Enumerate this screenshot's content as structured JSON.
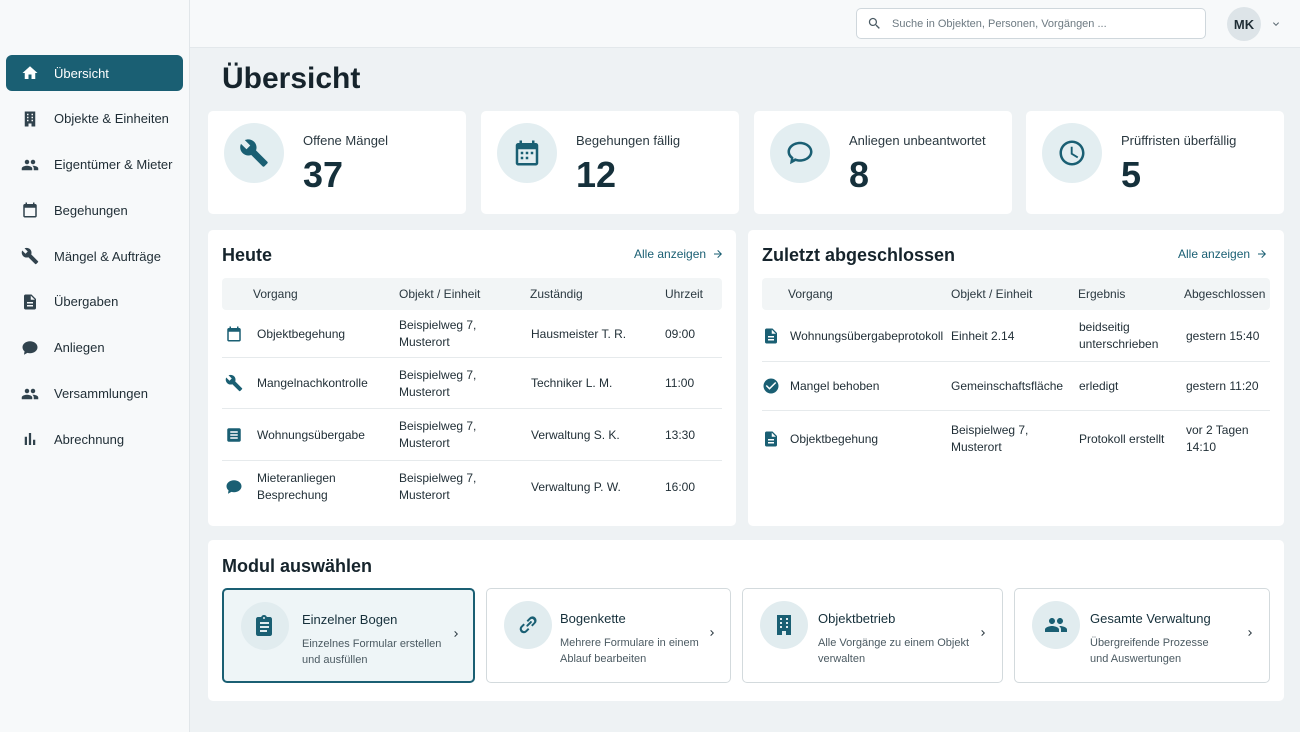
{
  "colors": {
    "accent": "#1a5f73",
    "background": "#eef2f4",
    "card": "#ffffff"
  },
  "sidebar": {
    "items": [
      {
        "label": "Übersicht",
        "icon": "home-icon"
      },
      {
        "label": "Objekte & Einheiten",
        "icon": "building-icon"
      },
      {
        "label": "Eigentümer & Mieter",
        "icon": "people-icon"
      },
      {
        "label": "Begehungen",
        "icon": "calendar-icon"
      },
      {
        "label": "Mängel & Aufträge",
        "icon": "wrench-icon"
      },
      {
        "label": "Übergaben",
        "icon": "document-icon"
      },
      {
        "label": "Anliegen",
        "icon": "chat-icon"
      },
      {
        "label": "Versammlungen",
        "icon": "group-icon"
      },
      {
        "label": "Abrechnung",
        "icon": "bar-chart-icon"
      }
    ]
  },
  "header": {
    "search_placeholder": "Suche in Objekten, Personen, Vorgängen ...",
    "avatar_initials": "MK"
  },
  "page_title": "Übersicht",
  "stats": [
    {
      "label": "Offene Mängel",
      "value": "37",
      "icon": "wrench-icon"
    },
    {
      "label": "Begehungen fällig",
      "value": "12",
      "icon": "calendar-icon"
    },
    {
      "label": "Anliegen unbeantwortet",
      "value": "8",
      "icon": "chat-icon"
    },
    {
      "label": "Prüffristen überfällig",
      "value": "5",
      "icon": "clock-icon"
    }
  ],
  "today": {
    "title": "Heute",
    "link": "Alle anzeigen",
    "columns": [
      "Vorgang",
      "Objekt / Einheit",
      "Zuständig",
      "Uhrzeit"
    ],
    "rows": [
      {
        "icon": "calendar-icon",
        "vorgang": "Objektbegehung",
        "objekt_1": "Beispielweg 7,",
        "objekt_2": "Musterort",
        "zustaendig": "Hausmeister T. R.",
        "uhrzeit": "09:00"
      },
      {
        "icon": "wrench-icon",
        "vorgang": "Mangelnachkontrolle",
        "objekt_1": "Beispielweg 7,",
        "objekt_2": "Musterort",
        "zustaendig": "Techniker L. M.",
        "uhrzeit": "11:00"
      },
      {
        "icon": "document-icon",
        "vorgang": "Wohnungsübergabe",
        "objekt_1": "Beispielweg 7,",
        "objekt_2": "Musterort",
        "zustaendig": "Verwaltung S. K.",
        "uhrzeit": "13:30"
      },
      {
        "icon": "chat-icon",
        "vorgang_1": "Mieteranliegen",
        "vorgang_2": "Besprechung",
        "objekt_1": "Beispielweg 7,",
        "objekt_2": "Musterort",
        "zustaendig": "Verwaltung P. W.",
        "uhrzeit": "16:00"
      }
    ]
  },
  "recent": {
    "title": "Zuletzt abgeschlossen",
    "link": "Alle anzeigen",
    "columns": [
      "Vorgang",
      "Objekt / Einheit",
      "Ergebnis",
      "Abgeschlossen"
    ],
    "rows": [
      {
        "icon": "document-icon",
        "vorgang": "Wohnungsübergabeprotokoll",
        "objekt": "Einheit 2.14",
        "ergebnis_1": "beidseitig",
        "ergebnis_2": "unterschrieben",
        "abgeschlossen": "gestern 15:40"
      },
      {
        "icon": "check-circle-icon",
        "vorgang": "Mangel behoben",
        "objekt": "Gemeinschaftsfläche",
        "ergebnis": "erledigt",
        "abgeschlossen": "gestern 11:20"
      },
      {
        "icon": "document-icon",
        "vorgang": "Objektbegehung",
        "objekt_1": "Beispielweg 7,",
        "objekt_2": "Musterort",
        "ergebnis": "Protokoll erstellt",
        "abgeschlossen_1": "vor 2 Tagen",
        "abgeschlossen_2": "14:10"
      }
    ]
  },
  "modules": {
    "title": "Modul auswählen",
    "items": [
      {
        "title": "Einzelner Bogen",
        "desc_1": "Einzelnes Formular erstellen",
        "desc_2": "und ausfüllen",
        "icon": "form-icon",
        "selected": true
      },
      {
        "title": "Bogenkette",
        "desc_1": "Mehrere Formulare in einem",
        "desc_2": "Ablauf bearbeiten",
        "icon": "link-icon",
        "selected": false
      },
      {
        "title": "Objektbetrieb",
        "desc_1": "Alle Vorgänge zu einem Objekt",
        "desc_2": "verwalten",
        "icon": "building-icon",
        "selected": false
      },
      {
        "title": "Gesamte Verwaltung",
        "desc_1": "Übergreifende Prozesse",
        "desc_2": "und Auswertungen",
        "icon": "group-icon",
        "selected": false
      }
    ]
  }
}
